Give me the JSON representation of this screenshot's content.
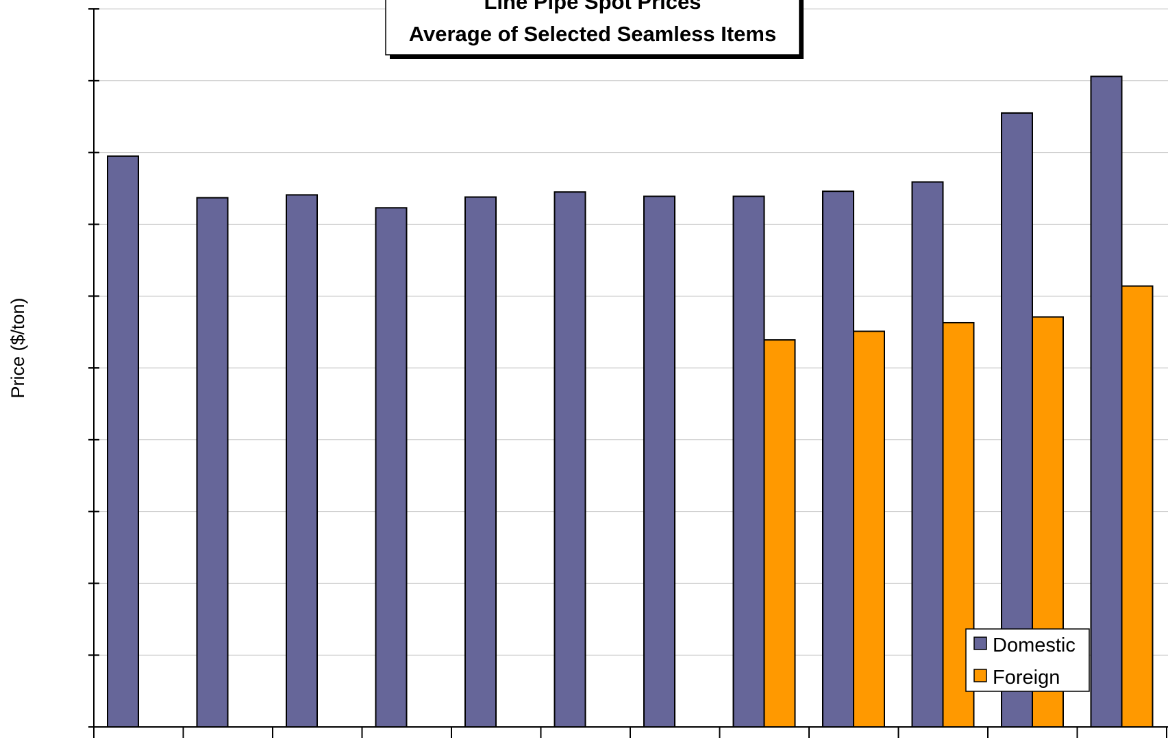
{
  "chart_data": {
    "type": "bar",
    "title": [
      "Line Pipe Spot Prices",
      "Average of Selected Seamless Items"
    ],
    "xlabel": "",
    "ylabel": "Price ($/ton)",
    "ylim": [
      0,
      100
    ],
    "y_tick_count": 11,
    "grid": true,
    "legend": "bottom-right",
    "categories": [
      "",
      "",
      "",
      "",
      "",
      "",
      "",
      "",
      "",
      "",
      "",
      ""
    ],
    "series": [
      {
        "name": "Domestic",
        "color": "#666699",
        "values": [
          79.5,
          73.7,
          74.1,
          72.3,
          73.8,
          74.5,
          73.9,
          73.9,
          74.6,
          75.9,
          85.5,
          90.6
        ]
      },
      {
        "name": "Foreign",
        "color": "#FF9900",
        "values": [
          null,
          null,
          null,
          null,
          null,
          null,
          null,
          53.9,
          55.1,
          56.3,
          57.1,
          61.4
        ]
      }
    ]
  }
}
